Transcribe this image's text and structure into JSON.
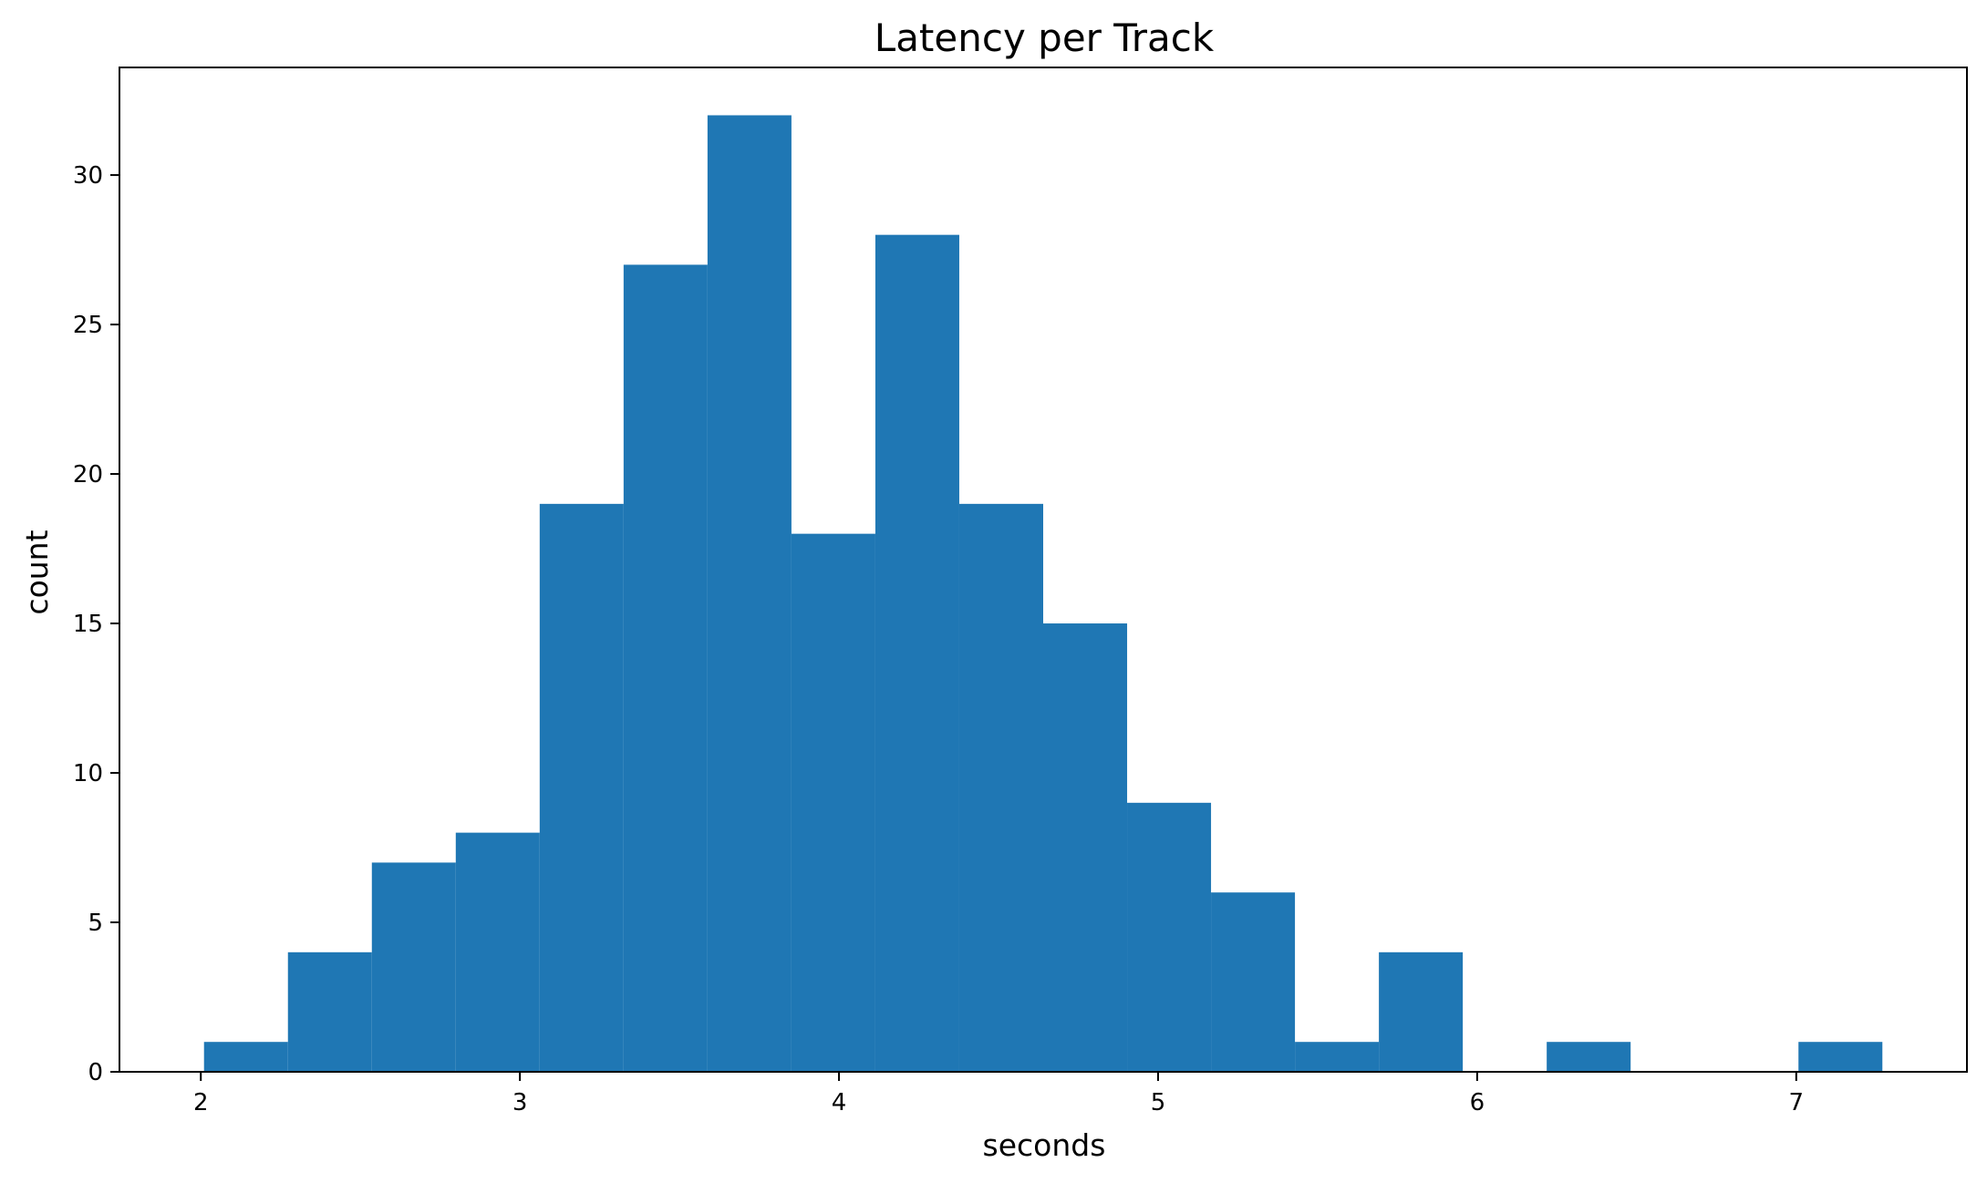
{
  "chart_data": {
    "type": "bar",
    "subtype": "histogram",
    "title": "Latency per Track",
    "xlabel": "seconds",
    "ylabel": "count",
    "bin_edges": [
      2.01,
      2.273,
      2.536,
      2.799,
      3.062,
      3.325,
      3.588,
      3.851,
      4.114,
      4.377,
      4.64,
      4.903,
      5.166,
      5.429,
      5.692,
      5.955,
      6.218,
      6.481,
      6.744,
      7.007,
      7.27
    ],
    "values": [
      1,
      4,
      7,
      8,
      19,
      27,
      32,
      18,
      28,
      19,
      15,
      9,
      6,
      1,
      4,
      0,
      1,
      0,
      0,
      1
    ],
    "xlim": [
      1.745,
      7.535
    ],
    "ylim": [
      0,
      33.6
    ],
    "xticks": [
      2,
      3,
      4,
      5,
      6,
      7
    ],
    "yticks": [
      0,
      5,
      10,
      15,
      20,
      25,
      30
    ],
    "bar_color": "#1f77b4",
    "grid": false,
    "legend": "none"
  }
}
